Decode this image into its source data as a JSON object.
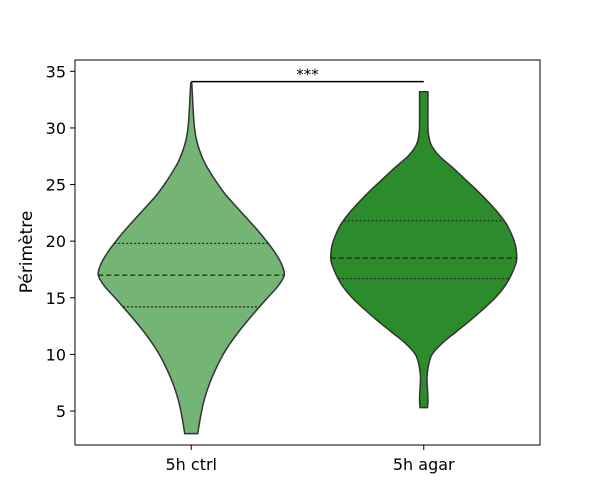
{
  "chart_data": {
    "type": "violin",
    "title": "",
    "xlabel": "",
    "ylabel": "Périmètre",
    "ylim": [
      2,
      36
    ],
    "yticks": [
      5,
      10,
      15,
      20,
      25,
      30,
      35
    ],
    "grid": false,
    "categories": [
      "5h ctrl",
      "5h agar"
    ],
    "series": [
      {
        "category": "5h ctrl",
        "color": "#74b474",
        "min": 3.0,
        "max": 34.0,
        "q1": 14.2,
        "median": 17.0,
        "q3": 19.8,
        "density": [
          [
            3.0,
            0.07
          ],
          [
            4.5,
            0.1
          ],
          [
            6.0,
            0.14
          ],
          [
            7.5,
            0.2
          ],
          [
            9.0,
            0.28
          ],
          [
            10.5,
            0.38
          ],
          [
            12.0,
            0.51
          ],
          [
            13.5,
            0.66
          ],
          [
            15.0,
            0.82
          ],
          [
            16.0,
            0.93
          ],
          [
            17.0,
            1.0
          ],
          [
            18.0,
            0.97
          ],
          [
            19.0,
            0.9
          ],
          [
            20.0,
            0.81
          ],
          [
            21.0,
            0.71
          ],
          [
            22.0,
            0.6
          ],
          [
            23.0,
            0.49
          ],
          [
            24.0,
            0.38
          ],
          [
            25.0,
            0.29
          ],
          [
            26.0,
            0.21
          ],
          [
            27.0,
            0.14
          ],
          [
            28.0,
            0.09
          ],
          [
            29.0,
            0.055
          ],
          [
            30.0,
            0.035
          ],
          [
            31.0,
            0.025
          ],
          [
            32.0,
            0.018
          ],
          [
            33.0,
            0.012
          ],
          [
            34.0,
            0.005
          ]
        ]
      },
      {
        "category": "5h agar",
        "color": "#2c8c2c",
        "min": 5.3,
        "max": 33.2,
        "q1": 16.7,
        "median": 18.5,
        "q3": 21.8,
        "density": [
          [
            5.3,
            0.04
          ],
          [
            6.0,
            0.045
          ],
          [
            7.0,
            0.04
          ],
          [
            8.0,
            0.035
          ],
          [
            9.0,
            0.05
          ],
          [
            10.0,
            0.09
          ],
          [
            11.0,
            0.2
          ],
          [
            12.0,
            0.35
          ],
          [
            13.0,
            0.5
          ],
          [
            14.0,
            0.64
          ],
          [
            15.0,
            0.77
          ],
          [
            16.0,
            0.87
          ],
          [
            17.0,
            0.94
          ],
          [
            18.0,
            0.99
          ],
          [
            18.5,
            1.0
          ],
          [
            19.5,
            0.99
          ],
          [
            20.5,
            0.95
          ],
          [
            21.5,
            0.89
          ],
          [
            22.5,
            0.8
          ],
          [
            23.5,
            0.69
          ],
          [
            24.5,
            0.57
          ],
          [
            25.5,
            0.44
          ],
          [
            26.5,
            0.31
          ],
          [
            27.5,
            0.17
          ],
          [
            28.5,
            0.08
          ],
          [
            29.5,
            0.05
          ],
          [
            30.5,
            0.045
          ],
          [
            31.5,
            0.045
          ],
          [
            32.5,
            0.045
          ],
          [
            33.2,
            0.045
          ]
        ]
      }
    ],
    "annotations": [
      {
        "type": "significance-bracket",
        "between": [
          "5h ctrl",
          "5h agar"
        ],
        "y": 34.0,
        "text": "***"
      }
    ]
  }
}
